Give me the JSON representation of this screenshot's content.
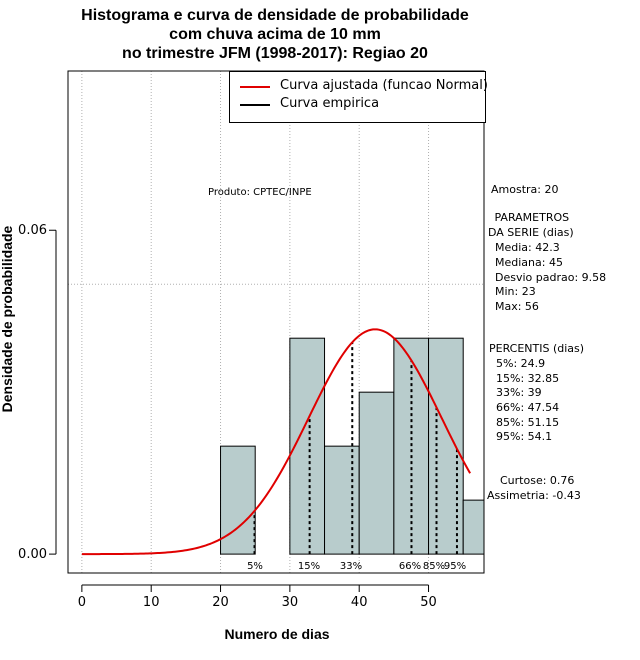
{
  "title_lines": [
    "Histograma e curva de densidade de probabilidade",
    "com chuva acima de 10 mm",
    "no trimestre JFM (1998-2017): Regiao 20"
  ],
  "legend": {
    "normal_label": "Curva ajustada (funcao Normal)",
    "empirical_label": "Curva empirica",
    "normal_color": "#e00000",
    "empirical_color": "#000000"
  },
  "product_label": "Produto: CPTEC/INPE",
  "stats": {
    "amostra": "Amostra: 20",
    "param_title_1": " PARAMETROS",
    "param_title_2": "DA SERIE (dias)",
    "media": "  Media: 42.3",
    "mediana": "  Mediana: 45",
    "desvio": "  Desvio padrao: 9.58",
    "min": "  Min: 23",
    "max": "  Max: 56",
    "perc_title": "PERCENTIS (dias)",
    "p5": "  5%: 24.9",
    "p15": "  15%: 32.85",
    "p33": "  33%: 39",
    "p66": "  66%: 47.54",
    "p85": "  85%: 51.15",
    "p95": "  95%: 54.1",
    "curtose": "  Curtose: 0.76",
    "assimetria": "Assimetria: -0.43"
  },
  "chart_data": {
    "type": "bar",
    "title": "Histograma e curva de densidade de probabilidade com chuva acima de 10 mm no trimestre JFM (1998-2017): Regiao 20",
    "xlabel": "Numero de dias",
    "ylabel": "Densidade de probabilidade",
    "xlim": [
      -2,
      58
    ],
    "ylim": [
      -0.0035,
      0.0895
    ],
    "x_ticks": [
      0,
      10,
      20,
      30,
      40,
      50
    ],
    "y_ticks": [
      0.0,
      0.06
    ],
    "y_tick_labels": [
      "0.00",
      "0.06"
    ],
    "grid": true,
    "bar_color": "#b8cccc",
    "histogram": {
      "bin_edges": [
        20,
        25,
        30,
        35,
        40,
        45,
        50,
        55,
        60
      ],
      "density": [
        0.02,
        0,
        0.04,
        0.02,
        0.03,
        0.04,
        0.04,
        0.01
      ]
    },
    "normal_fit": {
      "mean": 42.3,
      "sd": 9.58,
      "x_range": [
        0,
        56
      ]
    },
    "percentiles": [
      {
        "label": "5%",
        "value": 24.9
      },
      {
        "label": "15%",
        "value": 32.85
      },
      {
        "label": "33%",
        "value": 39
      },
      {
        "label": "66%",
        "value": 47.54
      },
      {
        "label": "85%",
        "value": 51.15
      },
      {
        "label": "95%",
        "value": 54.1
      }
    ]
  }
}
